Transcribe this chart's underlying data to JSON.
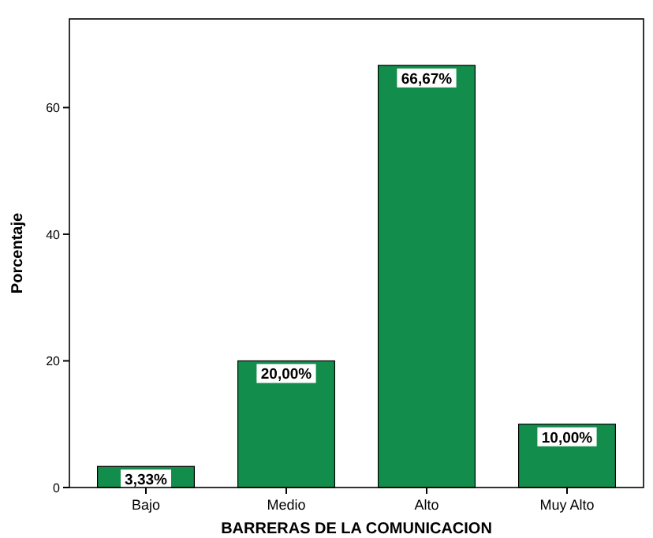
{
  "chart_data": {
    "type": "bar",
    "xlabel": "BARRERAS DE LA COMUNICACION",
    "ylabel": "Porcentaje",
    "categories": [
      "Bajo",
      "Medio",
      "Alto",
      "Muy Alto"
    ],
    "values": [
      3.33,
      20.0,
      66.67,
      10.0
    ],
    "value_labels": [
      "3,33%",
      "20,00%",
      "66,67%",
      "10,00%"
    ],
    "color": "#138d4b",
    "ylim": [
      0,
      74
    ],
    "yticks": [
      0,
      20,
      40,
      60
    ],
    "grid": false
  }
}
